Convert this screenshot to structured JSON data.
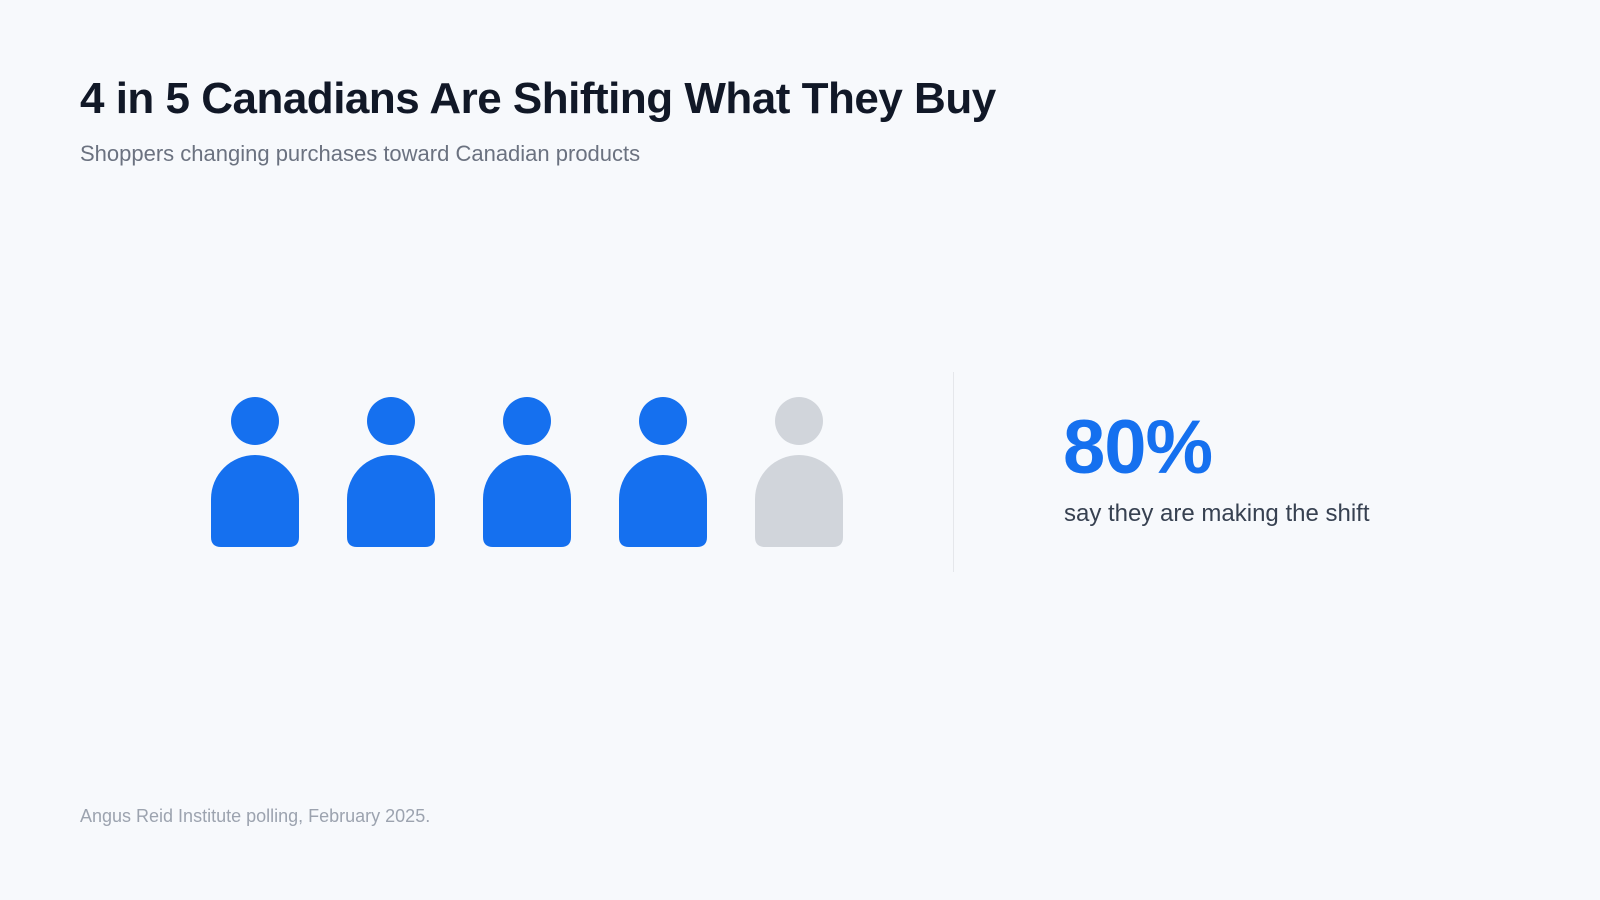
{
  "title": "4 in 5 Canadians Are Shifting What They Buy",
  "subtitle": "Shoppers changing purchases toward Canadian products",
  "stat": {
    "value": "80%",
    "label": "say they are making the shift"
  },
  "source": "Angus Reid Institute polling, February 2025.",
  "colors": {
    "filled": "#1570ef",
    "empty": "#d1d5db",
    "background": "#f7f9fc"
  },
  "chart_data": {
    "type": "pictogram",
    "total_icons": 5,
    "filled_icons": 4,
    "value_percent": 80,
    "icon": "person-icon"
  }
}
